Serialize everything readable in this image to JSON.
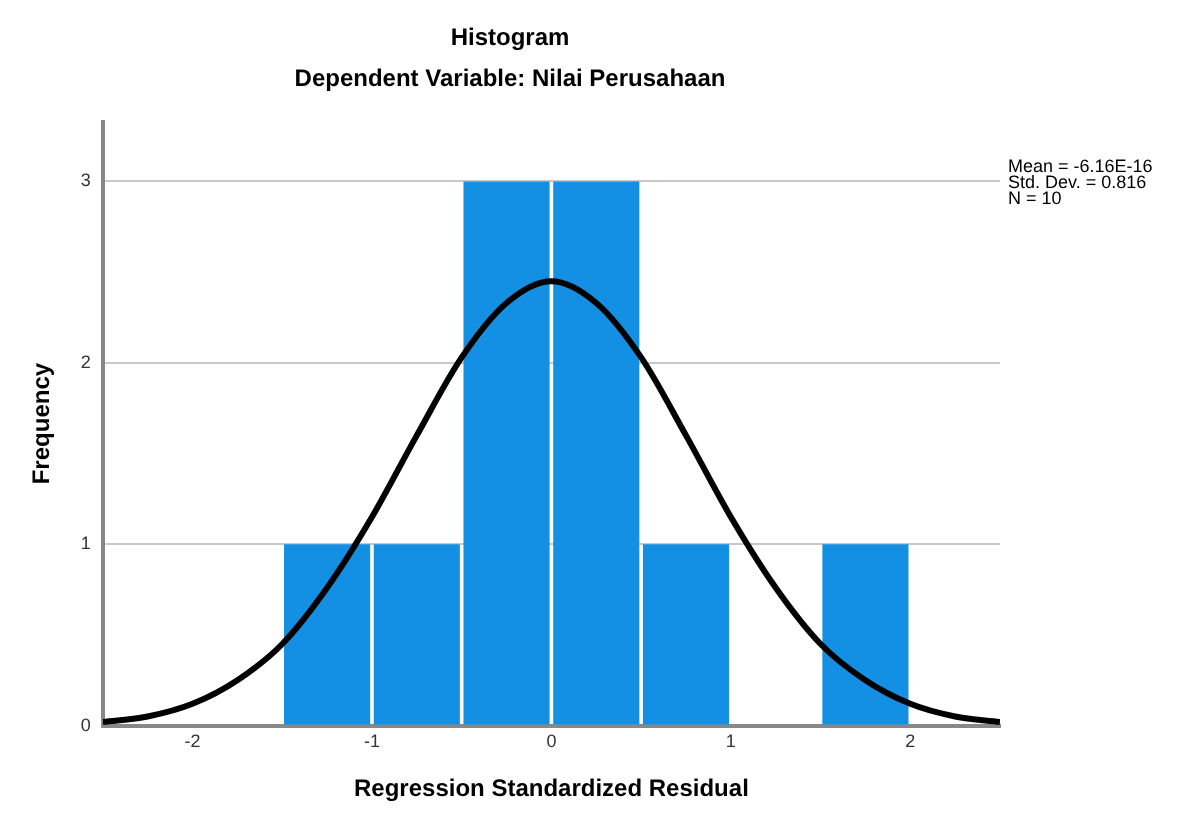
{
  "chart_data": {
    "type": "histogram",
    "title": "Histogram",
    "subtitle": "Dependent Variable: Nilai Perusahaan",
    "xlabel": "Regression Standardized Residual",
    "ylabel": "Frequency",
    "bins": [
      -1.5,
      -1,
      -0.5,
      0,
      0.5,
      1,
      1.5,
      2
    ],
    "series": [
      {
        "color": "#1390e3",
        "values": [
          1,
          1,
          3,
          3,
          1,
          0,
          1
        ]
      },
      {
        "type": "line",
        "color": "#000000",
        "x": [
          -2.5,
          -2.25,
          -2,
          -1.75,
          -1.5,
          -1.25,
          -1,
          -0.75,
          -0.5,
          -0.25,
          0,
          0.25,
          0.5,
          0.75,
          1,
          1.25,
          1.5,
          1.75,
          2,
          2.25,
          2.5
        ],
        "values": [
          0.02,
          0.05,
          0.12,
          0.25,
          0.45,
          0.76,
          1.15,
          1.6,
          2.03,
          2.33,
          2.45,
          2.33,
          2.03,
          1.6,
          1.15,
          0.76,
          0.45,
          0.25,
          0.12,
          0.05,
          0.02
        ]
      }
    ],
    "xlim": [
      -2.5,
      2.5
    ],
    "xticks": [
      -2,
      -1,
      0,
      1,
      2
    ],
    "ylim": [
      0,
      3.33
    ],
    "yticks": [
      0,
      1,
      2,
      3
    ],
    "grid": "y",
    "annotations": [
      "Mean = -6.16E-16",
      "Std. Dev. = 0.816",
      "N = 10"
    ]
  }
}
